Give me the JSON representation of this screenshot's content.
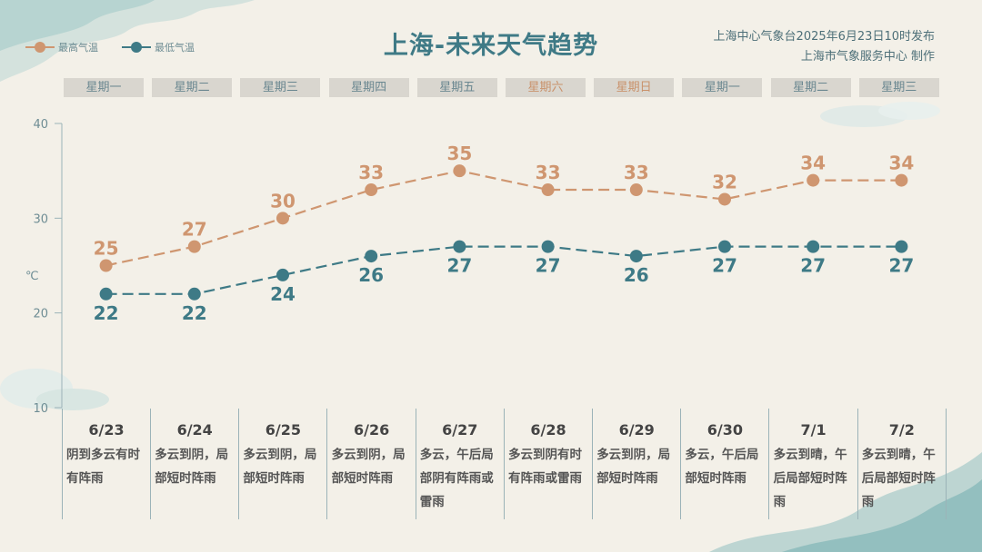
{
  "header": {
    "title": "上海-未来天气趋势",
    "source_line1": "上海中心气象台2025年6月23日10时发布",
    "source_line2": "上海市气象服务中心 制作"
  },
  "legend": {
    "high_label": "最高气温",
    "low_label": "最低气温"
  },
  "colors": {
    "high": "#cf9670",
    "low": "#3e7a86",
    "weekday": "#6a8790",
    "weekend": "#c9916a"
  },
  "days": [
    {
      "weekday": "星期一",
      "weekend": false,
      "date": "6/23",
      "desc": "阴到多云有时有阵雨"
    },
    {
      "weekday": "星期二",
      "weekend": false,
      "date": "6/24",
      "desc": "多云到阴，局部短时阵雨"
    },
    {
      "weekday": "星期三",
      "weekend": false,
      "date": "6/25",
      "desc": "多云到阴，局部短时阵雨"
    },
    {
      "weekday": "星期四",
      "weekend": false,
      "date": "6/26",
      "desc": "多云到阴，局部短时阵雨"
    },
    {
      "weekday": "星期五",
      "weekend": false,
      "date": "6/27",
      "desc": "多云，午后局部阴有阵雨或雷雨"
    },
    {
      "weekday": "星期六",
      "weekend": true,
      "date": "6/28",
      "desc": "多云到阴有时有阵雨或雷雨"
    },
    {
      "weekday": "星期日",
      "weekend": true,
      "date": "6/29",
      "desc": "多云到阴，局部短时阵雨"
    },
    {
      "weekday": "星期一",
      "weekend": false,
      "date": "6/30",
      "desc": "多云，午后局部短时阵雨"
    },
    {
      "weekday": "星期二",
      "weekend": false,
      "date": "7/1",
      "desc": "多云到晴，午后局部短时阵雨"
    },
    {
      "weekday": "星期三",
      "weekend": false,
      "date": "7/2",
      "desc": "多云到晴，午后局部短时阵雨"
    }
  ],
  "chart_data": {
    "type": "line",
    "title": "上海-未来天气趋势",
    "ylabel": "℃",
    "ylim": [
      10,
      40
    ],
    "yticks": [
      10,
      20,
      30,
      40
    ],
    "categories": [
      "6/23",
      "6/24",
      "6/25",
      "6/26",
      "6/27",
      "6/28",
      "6/29",
      "6/30",
      "7/1",
      "7/2"
    ],
    "series": [
      {
        "name": "最高气温",
        "values": [
          25,
          27,
          30,
          33,
          35,
          33,
          33,
          32,
          34,
          34
        ]
      },
      {
        "name": "最低气温",
        "values": [
          22,
          22,
          24,
          26,
          27,
          27,
          26,
          27,
          27,
          27
        ]
      }
    ],
    "legend": "top-left",
    "grid": false
  }
}
